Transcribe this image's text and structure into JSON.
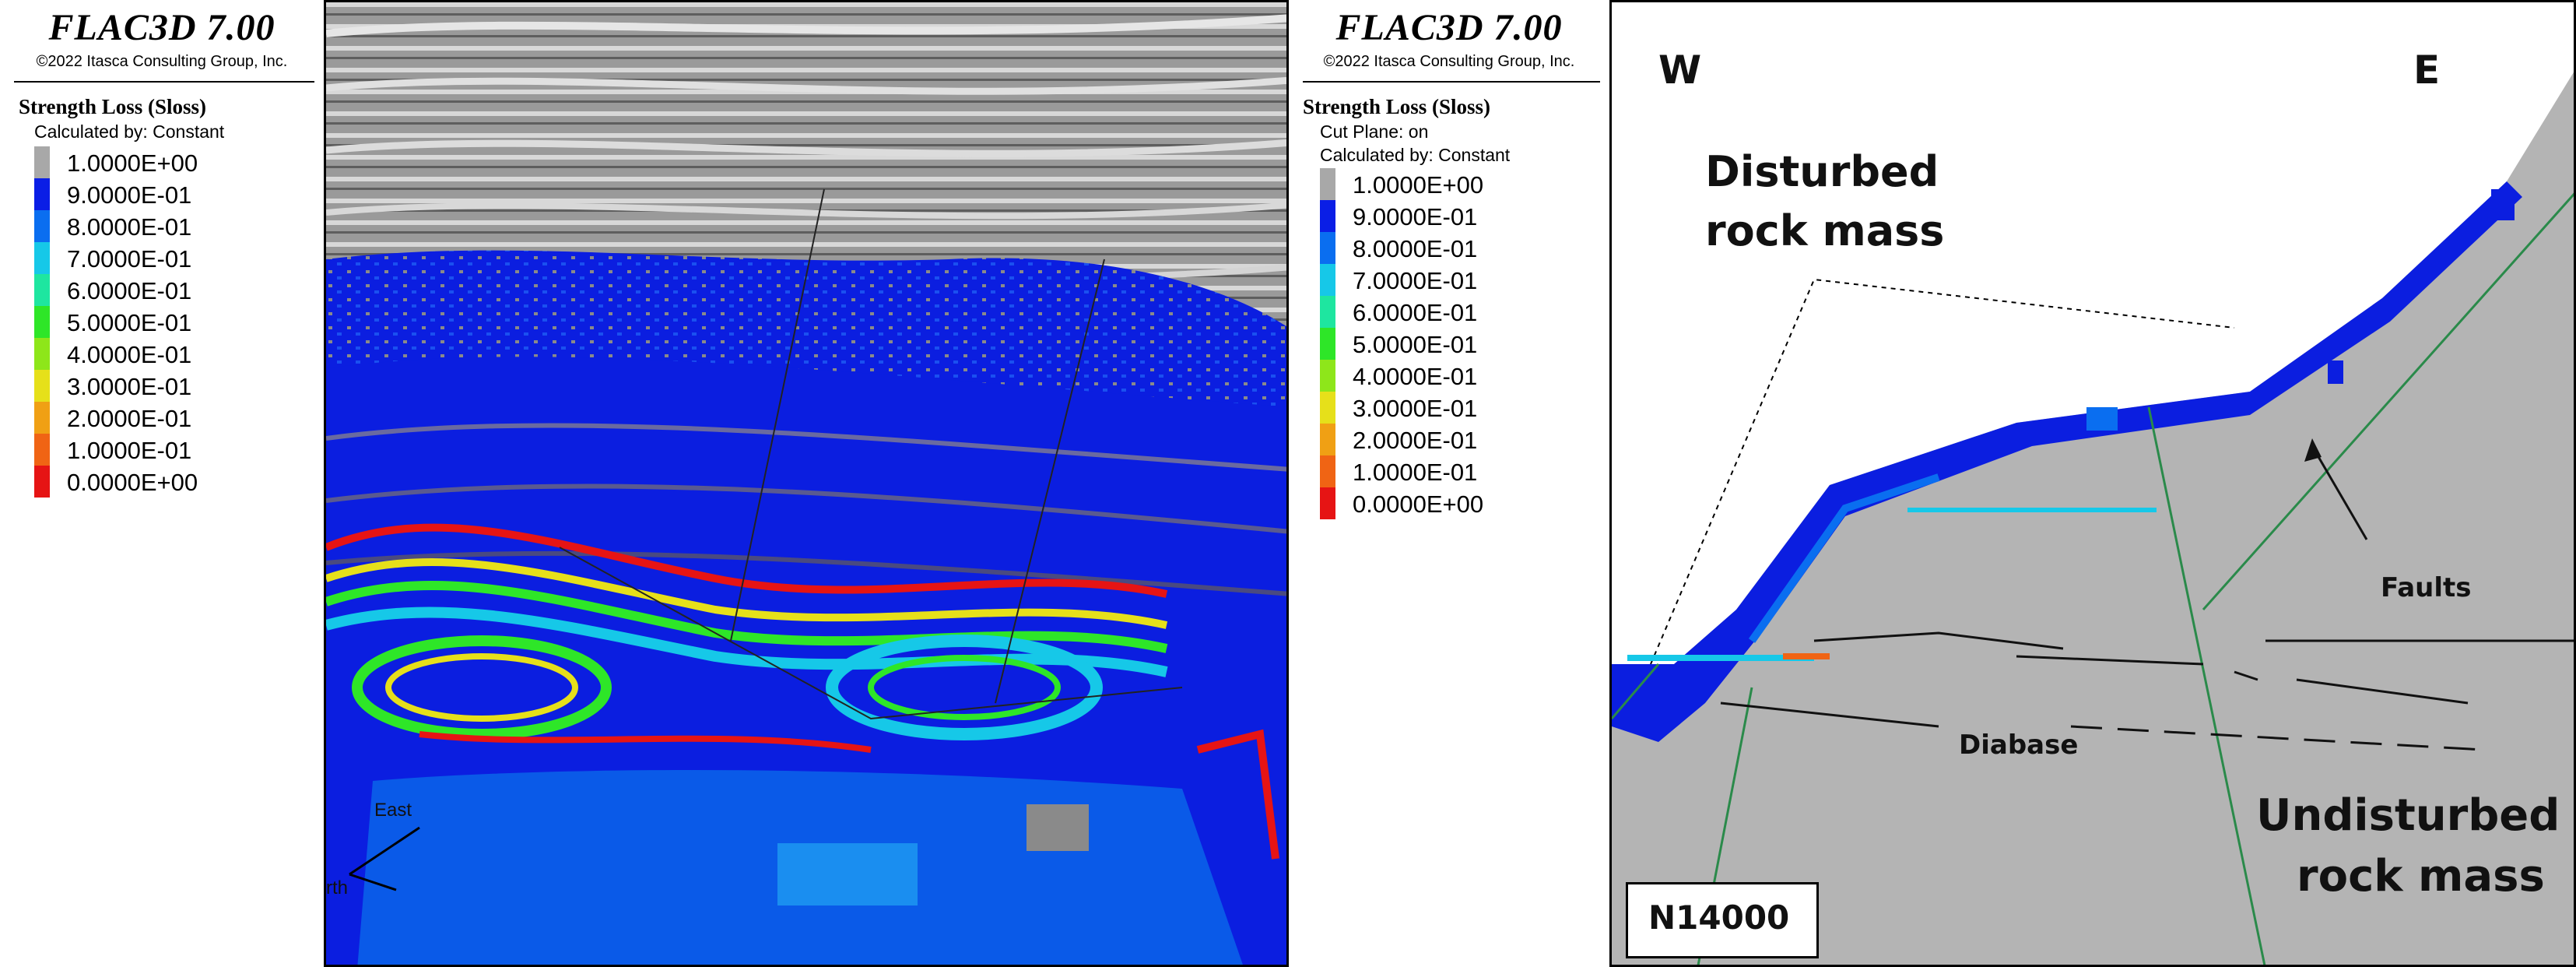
{
  "left_panel": {
    "software": "FLAC3D 7.00",
    "copyright": "©2022 Itasca Consulting Group, Inc.",
    "legend_title": "Strength Loss (Sloss)",
    "legend_lines": [
      "Calculated by: Constant"
    ],
    "view_labels": {
      "east": "East",
      "north": "rth"
    }
  },
  "right_panel": {
    "software": "FLAC3D 7.00",
    "copyright": "©2022 Itasca Consulting Group, Inc.",
    "legend_title": "Strength Loss (Sloss)",
    "legend_lines": [
      "Cut Plane: on",
      "Calculated by: Constant"
    ],
    "annotations": {
      "west": "W",
      "east": "E",
      "disturbed_line1": "Disturbed",
      "disturbed_line2": "rock mass",
      "faults": "Faults",
      "diabase": "Diabase",
      "undisturbed_line1": "Undisturbed",
      "undisturbed_line2": "rock mass",
      "section": "N14000"
    }
  },
  "legend_scale": [
    {
      "label": "1.0000E+00",
      "color": "#a8a8a8"
    },
    {
      "label": "9.0000E-01",
      "color": "#0a1ee6"
    },
    {
      "label": "8.0000E-01",
      "color": "#0a6ef0"
    },
    {
      "label": "7.0000E-01",
      "color": "#16c8e8"
    },
    {
      "label": "6.0000E-01",
      "color": "#1ee6a0"
    },
    {
      "label": "5.0000E-01",
      "color": "#2ee628"
    },
    {
      "label": "4.0000E-01",
      "color": "#8ee61a"
    },
    {
      "label": "3.0000E-01",
      "color": "#e6e01a"
    },
    {
      "label": "2.0000E-01",
      "color": "#f0a014"
    },
    {
      "label": "1.0000E-01",
      "color": "#f06414"
    },
    {
      "label": "0.0000E+00",
      "color": "#e61414"
    }
  ]
}
